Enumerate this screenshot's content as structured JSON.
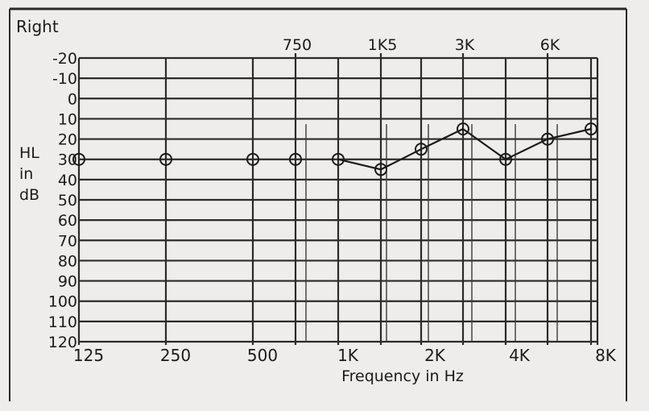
{
  "chart_data": {
    "type": "line",
    "title": "Right",
    "xlabel": "Frequency in Hz",
    "ylabel_lines": [
      "HL",
      "in",
      "dB"
    ],
    "x_ticks_bottom": [
      "125",
      "250",
      "500",
      "1K",
      "2K",
      "4K",
      "8K"
    ],
    "x_ticks_top": [
      "750",
      "1K5",
      "3K",
      "6K"
    ],
    "y_ticks": [
      "-20",
      "-10",
      "0",
      "10",
      "20",
      "30",
      "40",
      "50",
      "60",
      "70",
      "80",
      "90",
      "100",
      "110",
      "120"
    ],
    "ylim": [
      -20,
      120
    ],
    "y_inverted": true,
    "grid": true,
    "series": [
      {
        "marker": "circle",
        "points": [
          {
            "x": "125",
            "y": 30
          },
          {
            "x": "250",
            "y": 30
          },
          {
            "x": "500",
            "y": 30
          },
          {
            "x": "750",
            "y": 30
          },
          {
            "x": "1K",
            "y": 30
          },
          {
            "x": "1K5",
            "y": 35
          },
          {
            "x": "2K",
            "y": 25
          },
          {
            "x": "3K",
            "y": 15
          },
          {
            "x": "4K",
            "y": 30
          },
          {
            "x": "6K",
            "y": 20
          },
          {
            "x": "8K",
            "y": 15
          }
        ],
        "connected_from": "1K",
        "color": "#1b1b1b"
      }
    ]
  }
}
